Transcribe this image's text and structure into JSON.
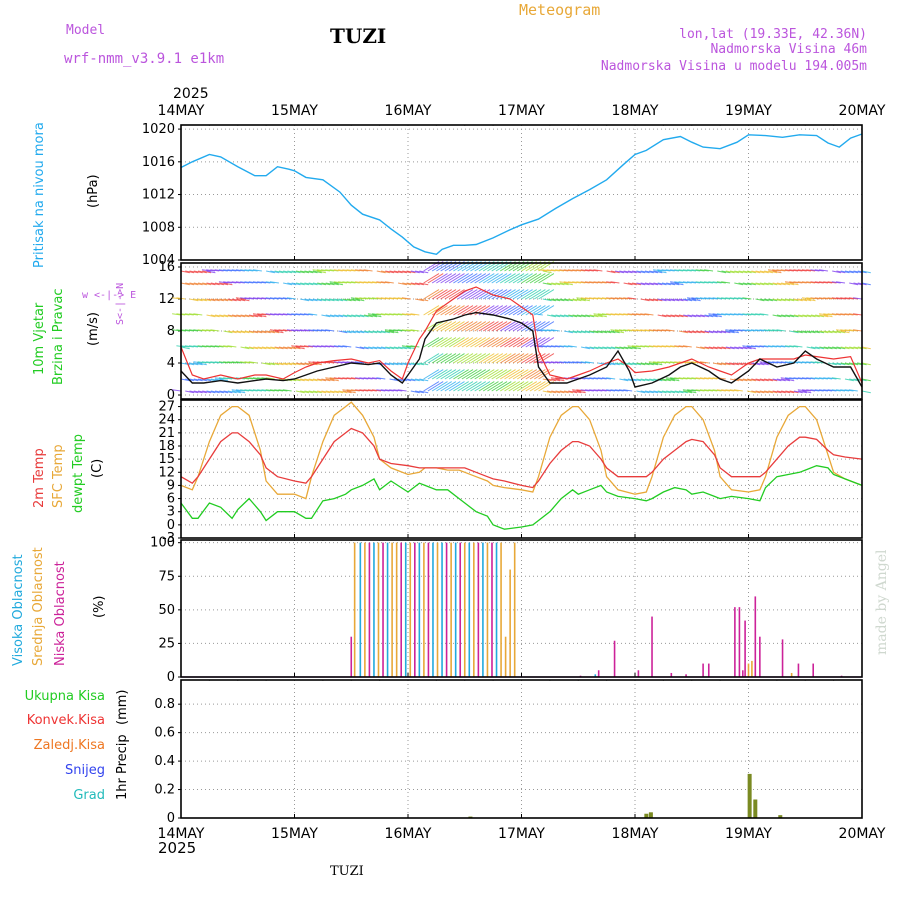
{
  "header": {
    "model_label": "Model",
    "model_name": "wrf-nmm_v3.9.1  e1km",
    "station": "TUZI",
    "product": "Meteogram",
    "coords": "lon,lat (19.33E, 42.36N)",
    "altitude": "Nadmorska Visina 46m",
    "model_altitude": "Nadmorska Visina u modelu 194.005m",
    "footer_station": "TUZI",
    "watermark": "made by Angel"
  },
  "colors": {
    "pressure": "#22aaee",
    "temp": "#e83c3c",
    "sfc": "#e8a838",
    "dewpt": "#22cc22",
    "gust": "#ee3333",
    "wind": "#111111",
    "high_cloud": "#22aadd",
    "mid_cloud": "#e8a838",
    "low_cloud": "#cc2299",
    "precip": "#7a8a22",
    "wind_legend": "#bb55dd"
  },
  "x_axis": {
    "year_top": "2025",
    "year_bottom": "2025",
    "dates": [
      "14MAY",
      "15MAY",
      "16MAY",
      "17MAY",
      "18MAY",
      "19MAY",
      "20MAY"
    ]
  },
  "chart_data": [
    {
      "type": "line",
      "id": "pressure",
      "ylabel": "Pritisak na nivou mora",
      "unit": "(hPa)",
      "ylim": [
        1004,
        1020.5
      ],
      "yticks": [
        1004,
        1008,
        1012,
        1016,
        1020
      ],
      "grid": true,
      "x": [
        0,
        0.1,
        0.25,
        0.35,
        0.5,
        0.65,
        0.75,
        0.85,
        0.95,
        1.0,
        1.1,
        1.25,
        1.4,
        1.5,
        1.6,
        1.75,
        1.85,
        1.95,
        2.05,
        2.15,
        2.25,
        2.3,
        2.4,
        2.5,
        2.6,
        2.75,
        2.9,
        3.0,
        3.15,
        3.3,
        3.45,
        3.6,
        3.75,
        3.9,
        4.0,
        4.1,
        4.25,
        4.4,
        4.5,
        4.6,
        4.75,
        4.9,
        5.0,
        5.15,
        5.3,
        5.45,
        5.6,
        5.7,
        5.8,
        5.9,
        6.0
      ],
      "series": [
        {
          "id": "slp",
          "values": [
            1015.3,
            1016.0,
            1016.9,
            1016.6,
            1015.4,
            1014.3,
            1014.3,
            1015.4,
            1015.1,
            1014.9,
            1014.1,
            1013.8,
            1012.3,
            1010.7,
            1009.6,
            1008.9,
            1007.8,
            1006.8,
            1005.6,
            1005.0,
            1004.7,
            1005.3,
            1005.8,
            1005.8,
            1005.9,
            1006.7,
            1007.7,
            1008.3,
            1009.0,
            1010.3,
            1011.5,
            1012.6,
            1013.8,
            1015.7,
            1016.9,
            1017.4,
            1018.7,
            1019.1,
            1018.4,
            1017.8,
            1017.6,
            1018.4,
            1019.3,
            1019.2,
            1019.0,
            1019.3,
            1019.2,
            1018.3,
            1017.8,
            1018.9,
            1019.4
          ]
        }
      ]
    },
    {
      "type": "line",
      "id": "wind",
      "ylabel": "10m Vjetar",
      "ylabel2": "Brzina i Pravac",
      "unit": "(m/s)",
      "legend_glyphs": "w  <-|->  E",
      "legend_glyphs2": "S<-|->N",
      "ylim": [
        -0.5,
        16.5
      ],
      "yticks": [
        0,
        4,
        8,
        12,
        16
      ],
      "grid": true,
      "x": [
        0,
        0.1,
        0.2,
        0.35,
        0.5,
        0.65,
        0.75,
        0.9,
        1.0,
        1.1,
        1.2,
        1.35,
        1.5,
        1.65,
        1.75,
        1.85,
        1.95,
        2.0,
        2.1,
        2.15,
        2.25,
        2.4,
        2.5,
        2.6,
        2.75,
        2.9,
        3.0,
        3.1,
        3.15,
        3.25,
        3.4,
        3.5,
        3.6,
        3.75,
        3.85,
        3.95,
        4.0,
        4.15,
        4.3,
        4.4,
        4.5,
        4.65,
        4.75,
        4.85,
        5.0,
        5.1,
        5.25,
        5.4,
        5.5,
        5.6,
        5.75,
        5.9,
        6.0
      ],
      "series": [
        {
          "id": "gust",
          "values": [
            6.0,
            2.5,
            2.0,
            2.5,
            2.0,
            2.5,
            2.5,
            2.0,
            2.8,
            3.5,
            4.0,
            4.3,
            4.5,
            4.0,
            4.3,
            3.0,
            2.0,
            4.0,
            7.0,
            8.0,
            10.5,
            12.0,
            13.0,
            13.5,
            12.5,
            12.0,
            11.0,
            10.0,
            5.5,
            2.5,
            2.0,
            2.5,
            3.0,
            4.0,
            4.5,
            3.5,
            2.8,
            3.0,
            3.5,
            4.0,
            4.5,
            3.5,
            3.0,
            2.5,
            4.0,
            4.5,
            4.5,
            4.5,
            5.0,
            4.8,
            4.5,
            4.8,
            1.5
          ]
        },
        {
          "id": "speed",
          "values": [
            3.0,
            1.5,
            1.5,
            1.8,
            1.5,
            1.8,
            2.0,
            1.8,
            2.0,
            2.5,
            3.0,
            3.5,
            4.0,
            3.8,
            4.0,
            2.5,
            1.5,
            2.5,
            4.5,
            7.0,
            9.0,
            9.5,
            10.0,
            10.3,
            10.0,
            9.5,
            9.0,
            8.0,
            3.5,
            1.5,
            1.5,
            2.0,
            2.5,
            3.5,
            5.5,
            3.0,
            1.0,
            1.5,
            2.5,
            3.5,
            4.0,
            3.0,
            2.0,
            1.5,
            3.0,
            4.5,
            3.5,
            4.0,
            5.5,
            4.5,
            3.5,
            3.5,
            1.0
          ]
        }
      ]
    },
    {
      "type": "line",
      "id": "temperature",
      "ylabel": "2m Temp",
      "ylabel2": "SFC Temp",
      "ylabel3": "dewpt Temp",
      "unit": "(C)",
      "ylim": [
        -3,
        28.5
      ],
      "yticks": [
        -3,
        0,
        3,
        6,
        9,
        12,
        15,
        18,
        21,
        24,
        27
      ],
      "grid": true,
      "x": [
        0,
        0.1,
        0.15,
        0.25,
        0.35,
        0.45,
        0.5,
        0.6,
        0.7,
        0.75,
        0.85,
        1.0,
        1.1,
        1.15,
        1.25,
        1.35,
        1.45,
        1.5,
        1.6,
        1.7,
        1.75,
        1.85,
        2.0,
        2.1,
        2.15,
        2.25,
        2.35,
        2.45,
        2.5,
        2.6,
        2.7,
        2.75,
        2.85,
        3.0,
        3.1,
        3.15,
        3.25,
        3.35,
        3.45,
        3.5,
        3.6,
        3.7,
        3.75,
        3.85,
        4.0,
        4.1,
        4.15,
        4.25,
        4.35,
        4.45,
        4.5,
        4.6,
        4.7,
        4.75,
        4.85,
        5.0,
        5.1,
        5.15,
        5.25,
        5.35,
        5.45,
        5.5,
        5.6,
        5.7,
        5.75,
        5.85,
        6.0
      ],
      "series": [
        {
          "id": "t2m",
          "values": [
            11,
            9.5,
            11,
            15,
            19,
            21,
            21,
            19,
            16,
            13,
            11,
            10,
            9.5,
            11,
            15,
            19,
            21,
            22,
            21,
            18,
            15,
            14,
            13.5,
            13,
            13,
            13,
            13,
            13,
            13,
            12,
            11,
            10.5,
            10,
            9,
            8.5,
            10,
            14,
            17,
            19,
            19,
            18,
            15,
            13,
            11,
            11,
            11,
            12,
            15,
            17,
            19,
            19.5,
            19,
            16,
            13,
            11,
            11,
            11,
            12,
            15,
            18,
            20,
            20,
            19.5,
            17,
            16,
            15.5,
            15
          ]
        },
        {
          "id": "sfc",
          "values": [
            9,
            8,
            11,
            19,
            25,
            27,
            27,
            25,
            17,
            10,
            7,
            7,
            6,
            11,
            19,
            25,
            27,
            28,
            25,
            20,
            15,
            13,
            11.5,
            12,
            13,
            13,
            12.5,
            12.5,
            12,
            11,
            10,
            9,
            8.5,
            8,
            7.5,
            11,
            20,
            25,
            27,
            27,
            24,
            17,
            11,
            8,
            7,
            7.5,
            11,
            20,
            25,
            27,
            27,
            24,
            17,
            11,
            8,
            7.5,
            8,
            11,
            20,
            25,
            27,
            27,
            24,
            16,
            12,
            10.5,
            9
          ]
        },
        {
          "id": "dewpt",
          "values": [
            5,
            1.5,
            1.5,
            5,
            4,
            1.5,
            3.5,
            6,
            3,
            1,
            3,
            3,
            1.5,
            1.5,
            5.5,
            6,
            7,
            8,
            9,
            10.5,
            8,
            10,
            7.5,
            9.5,
            9,
            8,
            8,
            6,
            5,
            3,
            2,
            0,
            -1,
            -0.5,
            0,
            1,
            3,
            6,
            8,
            7,
            8,
            9,
            7.5,
            6.5,
            6,
            5.5,
            6,
            7.5,
            8.5,
            8,
            7,
            7.5,
            6.5,
            6,
            6.5,
            6,
            5.5,
            8.5,
            11,
            11.5,
            12,
            12.5,
            13.5,
            13,
            11.5,
            10.5,
            9
          ]
        }
      ]
    },
    {
      "type": "bar",
      "id": "cloud",
      "ylabel": "Visoka Oblacnost",
      "ylabel2": "Srednja Oblacnost",
      "ylabel3": "Niska Oblacnost",
      "unit": "(%)",
      "ylim": [
        0,
        102
      ],
      "yticks": [
        0,
        25,
        50,
        75,
        100
      ],
      "grid": true,
      "bars": [
        {
          "x": 1.5,
          "series": "low",
          "value": 30
        },
        {
          "x": 1.53,
          "series": "mid",
          "value": 100
        },
        {
          "x": 1.58,
          "series": "high",
          "value": 100
        },
        {
          "x": 1.62,
          "series": "mid",
          "value": 100
        },
        {
          "x": 1.66,
          "series": "low",
          "value": 100
        },
        {
          "x": 1.7,
          "series": "high",
          "value": 100
        },
        {
          "x": 1.74,
          "series": "mid",
          "value": 100
        },
        {
          "x": 1.78,
          "series": "low",
          "value": 100
        },
        {
          "x": 1.82,
          "series": "high",
          "value": 100
        },
        {
          "x": 1.86,
          "series": "mid",
          "value": 100
        },
        {
          "x": 1.9,
          "series": "mid",
          "value": 100
        },
        {
          "x": 1.94,
          "series": "low",
          "value": 100
        },
        {
          "x": 1.98,
          "series": "high",
          "value": 100
        },
        {
          "x": 2.02,
          "series": "mid",
          "value": 100
        },
        {
          "x": 2.06,
          "series": "low",
          "value": 100
        },
        {
          "x": 2.1,
          "series": "high",
          "value": 100
        },
        {
          "x": 2.14,
          "series": "mid",
          "value": 100
        },
        {
          "x": 2.18,
          "series": "low",
          "value": 100
        },
        {
          "x": 2.22,
          "series": "high",
          "value": 100
        },
        {
          "x": 2.26,
          "series": "mid",
          "value": 100
        },
        {
          "x": 2.3,
          "series": "high",
          "value": 100
        },
        {
          "x": 2.34,
          "series": "low",
          "value": 100
        },
        {
          "x": 2.38,
          "series": "mid",
          "value": 100
        },
        {
          "x": 2.42,
          "series": "high",
          "value": 100
        },
        {
          "x": 2.46,
          "series": "low",
          "value": 100
        },
        {
          "x": 2.5,
          "series": "mid",
          "value": 100
        },
        {
          "x": 2.54,
          "series": "high",
          "value": 100
        },
        {
          "x": 2.58,
          "series": "mid",
          "value": 100
        },
        {
          "x": 2.62,
          "series": "low",
          "value": 100
        },
        {
          "x": 2.66,
          "series": "high",
          "value": 100
        },
        {
          "x": 2.7,
          "series": "mid",
          "value": 100
        },
        {
          "x": 2.74,
          "series": "low",
          "value": 100
        },
        {
          "x": 2.78,
          "series": "high",
          "value": 100
        },
        {
          "x": 2.82,
          "series": "mid",
          "value": 100
        },
        {
          "x": 2.86,
          "series": "mid",
          "value": 30
        },
        {
          "x": 2.9,
          "series": "mid",
          "value": 80
        },
        {
          "x": 2.94,
          "series": "mid",
          "value": 100
        },
        {
          "x": 3.52,
          "series": "low",
          "value": 1
        },
        {
          "x": 3.65,
          "series": "high",
          "value": 2
        },
        {
          "x": 3.68,
          "series": "low",
          "value": 5
        },
        {
          "x": 3.82,
          "series": "low",
          "value": 27
        },
        {
          "x": 4.03,
          "series": "low",
          "value": 5
        },
        {
          "x": 4.15,
          "series": "low",
          "value": 45
        },
        {
          "x": 4.32,
          "series": "low",
          "value": 3
        },
        {
          "x": 4.45,
          "series": "low",
          "value": 2
        },
        {
          "x": 4.6,
          "series": "low",
          "value": 10
        },
        {
          "x": 4.65,
          "series": "low",
          "value": 10
        },
        {
          "x": 4.88,
          "series": "low",
          "value": 52
        },
        {
          "x": 4.92,
          "series": "low",
          "value": 52
        },
        {
          "x": 4.95,
          "series": "low",
          "value": 5
        },
        {
          "x": 4.97,
          "series": "low",
          "value": 42
        },
        {
          "x": 5.0,
          "series": "mid",
          "value": 10
        },
        {
          "x": 5.03,
          "series": "mid",
          "value": 12
        },
        {
          "x": 5.06,
          "series": "low",
          "value": 60
        },
        {
          "x": 5.1,
          "series": "low",
          "value": 30
        },
        {
          "x": 5.3,
          "series": "low",
          "value": 28
        },
        {
          "x": 5.38,
          "series": "mid",
          "value": 3
        },
        {
          "x": 5.44,
          "series": "low",
          "value": 10
        },
        {
          "x": 5.57,
          "series": "low",
          "value": 10
        },
        {
          "x": 5.82,
          "series": "low",
          "value": 1
        }
      ]
    },
    {
      "type": "bar",
      "id": "precip",
      "ylabel": "1hr Precip",
      "unit": "(mm)",
      "legend": [
        "Ukupna Kisa",
        "Konvek.Kisa",
        "Zaledj.Kisa",
        "Snijeg",
        "Grad"
      ],
      "legend_colors": [
        "#22cc22",
        "#ee3333",
        "#ee7722",
        "#3344ee",
        "#22bbbb"
      ],
      "ylim": [
        0,
        0.97
      ],
      "yticks": [
        0,
        0.2,
        0.4,
        0.6,
        0.8
      ],
      "ytick_labels": [
        "0",
        "0.2",
        "0.4",
        "0.6",
        "0.8"
      ],
      "grid": true,
      "bars": [
        {
          "x": 2.55,
          "value": 0.01
        },
        {
          "x": 4.1,
          "value": 0.03
        },
        {
          "x": 4.14,
          "value": 0.04
        },
        {
          "x": 5.01,
          "value": 0.31
        },
        {
          "x": 5.06,
          "value": 0.13
        },
        {
          "x": 5.28,
          "value": 0.02
        }
      ]
    }
  ]
}
